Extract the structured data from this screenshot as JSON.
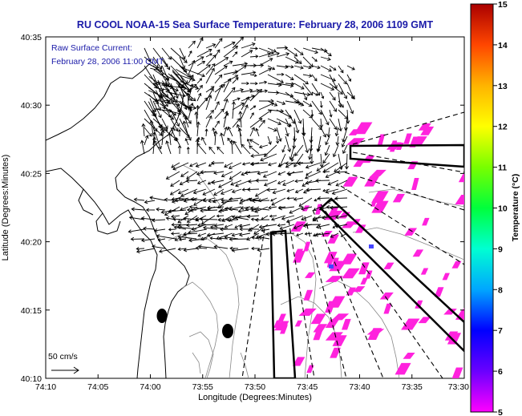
{
  "title": "RU COOL  NOAA-15  Sea Surface Temperature:  February 28, 2006 1109 GMT",
  "current_note": {
    "line1": "Raw Surface Current:",
    "line2": "February 28, 2006 11:00 GMT"
  },
  "x_axis": {
    "label": "Longitude (Degrees:Minutes)",
    "ticks": [
      "74:10",
      "74:05",
      "74:00",
      "73:55",
      "73:50",
      "73:45",
      "73:40",
      "73:35",
      "73:30"
    ]
  },
  "y_axis": {
    "label": "Latitude (Degrees:Minutes)",
    "ticks": [
      "40:35",
      "40:30",
      "40:25",
      "40:20",
      "40:15",
      "40:10"
    ]
  },
  "scale_vector": {
    "label": "50 cm/s"
  },
  "colorbar": {
    "label": "Temperature (°C)",
    "ticks": [
      "15",
      "14",
      "13",
      "12",
      "11",
      "10",
      "9",
      "8",
      "7",
      "6",
      "5"
    ],
    "range": [
      5,
      15
    ],
    "colors": [
      "#ff00ff",
      "#6a00ff",
      "#0000ff",
      "#00a6ff",
      "#00ffd2",
      "#00ff3c",
      "#78ff00",
      "#ffff00",
      "#ffb400",
      "#ff4600",
      "#aa0000"
    ]
  },
  "sst_patch_color": "#ff22dd",
  "map_extent": {
    "lon_minutes": [
      -74.1667,
      -73.5
    ],
    "lat": [
      40.1667,
      40.5833
    ]
  }
}
